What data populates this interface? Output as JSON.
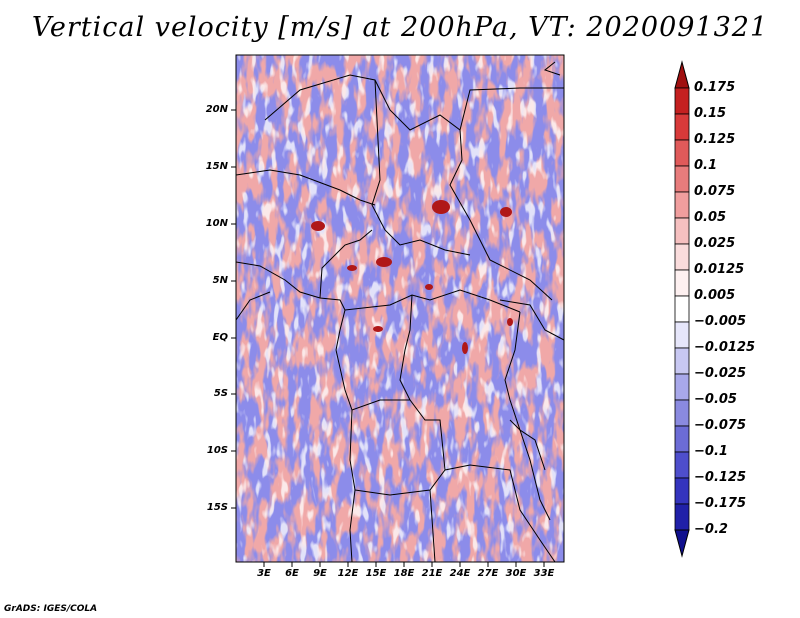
{
  "title": "Vertical velocity [m/s] at 200hPa, VT: 2020091321",
  "credit": "GrADS: IGES/COLA",
  "map": {
    "variable": "Vertical velocity",
    "units": "m/s",
    "level": "200hPa",
    "valid_time": "2020091321",
    "lon_range": [
      0,
      35
    ],
    "lat_range": [
      -20,
      25
    ],
    "latitude_labels": [
      "20N",
      "15N",
      "10N",
      "5N",
      "EQ",
      "5S",
      "10S",
      "15S"
    ],
    "longitude_labels": [
      "3E",
      "6E",
      "9E",
      "12E",
      "15E",
      "18E",
      "21E",
      "24E",
      "27E",
      "30E",
      "33E"
    ]
  },
  "colorbar": {
    "labels": [
      "0.175",
      "0.15",
      "0.125",
      "0.1",
      "0.075",
      "0.05",
      "0.025",
      "0.0125",
      "0.005",
      "−0.005",
      "−0.0125",
      "−0.025",
      "−0.05",
      "−0.075",
      "−0.1",
      "−0.125",
      "−0.175",
      "−0.2"
    ],
    "colors": [
      "#a01010",
      "#c42020",
      "#d83a3a",
      "#e05a5a",
      "#e87c7c",
      "#f09e9e",
      "#f6c0c0",
      "#fadcdc",
      "#fdf0f0",
      "#ffffff",
      "#e6e6fa",
      "#c8c8f2",
      "#a8a8ea",
      "#8a8ae0",
      "#6c6cd6",
      "#4e4ecc",
      "#3434be",
      "#2020a8",
      "#10108e"
    ]
  }
}
